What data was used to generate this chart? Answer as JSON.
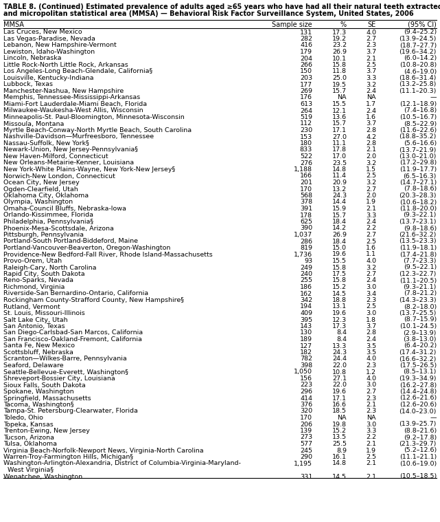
{
  "title_line1": "TABLE 8. (Continued) Estimated prevalence of adults aged ≥65 years who have had all their natural teeth extracted, by metropolitan",
  "title_line2": "and micropolitan statistical area (MMSA) — Behavioral Risk Factor Surveillance System, United States, 2006",
  "headers": [
    "MMSA",
    "Sample size",
    "%",
    "SE",
    "(95% CI)"
  ],
  "rows": [
    [
      "Las Cruces, New Mexico",
      "131",
      "17.3",
      "4.0",
      "(9.4–25.2)"
    ],
    [
      "Las Vegas-Paradise, Nevada",
      "282",
      "19.2",
      "2.7",
      "(13.9–24.5)"
    ],
    [
      "Lebanon, New Hampshire-Vermont",
      "416",
      "23.2",
      "2.3",
      "(18.7–27.7)"
    ],
    [
      "Lewiston, Idaho-Washington",
      "179",
      "26.9",
      "3.7",
      "(19.6–34.2)"
    ],
    [
      "Lincoln, Nebraska",
      "204",
      "10.1",
      "2.1",
      "(6.0–14.2)"
    ],
    [
      "Little Rock-North Little Rock, Arkansas",
      "266",
      "15.8",
      "2.5",
      "(10.8–20.8)"
    ],
    [
      "Los Angeles-Long Beach-Glendale, California§",
      "150",
      "11.8",
      "3.7",
      "(4.6–19.0)"
    ],
    [
      "Louisville, Kentucky-Indiana",
      "203",
      "25.0",
      "3.3",
      "(18.6–31.4)"
    ],
    [
      "Lubbock, Texas",
      "177",
      "19.5",
      "3.2",
      "(13.2–25.8)"
    ],
    [
      "Manchester-Nashua, New Hampshire",
      "269",
      "15.7",
      "2.4",
      "(11.1–20.3)"
    ],
    [
      "Memphis, Tennessee-Mississippi-Arkansas",
      "176",
      "NA",
      "NA",
      "—"
    ],
    [
      "Miami-Fort Lauderdale-Miami Beach, Florida",
      "613",
      "15.5",
      "1.7",
      "(12.1–18.9)"
    ],
    [
      "Milwaukee-Waukesha-West Allis, Wisconsin",
      "264",
      "12.1",
      "2.4",
      "(7.4–16.8)"
    ],
    [
      "Minneapolis-St. Paul-Bloomington, Minnesota-Wisconsin",
      "519",
      "13.6",
      "1.6",
      "(10.5–16.7)"
    ],
    [
      "Missoula, Montana",
      "112",
      "15.7",
      "3.7",
      "(8.5–22.9)"
    ],
    [
      "Myrtle Beach-Conway-North Myrtle Beach, South Carolina",
      "230",
      "17.1",
      "2.8",
      "(11.6–22.6)"
    ],
    [
      "Nashville-Davidson—Murfreesboro, Tennessee",
      "153",
      "27.0",
      "4.2",
      "(18.8–35.2)"
    ],
    [
      "Nassau-Suffolk, New York§",
      "180",
      "11.1",
      "2.8",
      "(5.6–16.6)"
    ],
    [
      "Newark-Union, New Jersey-Pennsylvania§",
      "833",
      "17.8",
      "2.1",
      "(13.7–21.9)"
    ],
    [
      "New Haven-Milford, Connecticut",
      "522",
      "17.0",
      "2.0",
      "(13.0–21.0)"
    ],
    [
      "New Orleans-Metairie-Kenner, Louisiana",
      "276",
      "23.5",
      "3.2",
      "(17.2–29.8)"
    ],
    [
      "New York-White Plains-Wayne, New York-New Jersey§",
      "1,188",
      "14.8",
      "1.5",
      "(11.9–17.7)"
    ],
    [
      "Norwich-New London, Connecticut",
      "166",
      "11.4",
      "2.5",
      "(6.5–16.3)"
    ],
    [
      "Ocean City, New Jersey",
      "201",
      "20.9",
      "3.2",
      "(14.7–27.1)"
    ],
    [
      "Ogden-Clearfield, Utah",
      "170",
      "13.2",
      "2.7",
      "(7.8–18.6)"
    ],
    [
      "Oklahoma City, Oklahoma",
      "568",
      "24.3",
      "2.0",
      "(20.3–28.3)"
    ],
    [
      "Olympia, Washington",
      "378",
      "14.4",
      "1.9",
      "(10.6–18.2)"
    ],
    [
      "Omaha-Council Bluffs, Nebraska-Iowa",
      "391",
      "15.9",
      "2.1",
      "(11.8–20.0)"
    ],
    [
      "Orlando-Kissimmee, Florida",
      "178",
      "15.7",
      "3.3",
      "(9.3–22.1)"
    ],
    [
      "Philadelphia, Pennsylvania§",
      "625",
      "18.4",
      "2.4",
      "(13.7–23.1)"
    ],
    [
      "Phoenix-Mesa-Scottsdale, Arizona",
      "390",
      "14.2",
      "2.2",
      "(9.8–18.6)"
    ],
    [
      "Pittsburgh, Pennsylvania",
      "1,037",
      "26.9",
      "2.7",
      "(21.6–32.2)"
    ],
    [
      "Portland-South Portland-Biddeford, Maine",
      "286",
      "18.4",
      "2.5",
      "(13.5–23.3)"
    ],
    [
      "Portland-Vancouver-Beaverton, Oregon-Washington",
      "819",
      "15.0",
      "1.6",
      "(11.9–18.1)"
    ],
    [
      "Providence-New Bedford-Fall River, Rhode Island-Massachusetts",
      "1,736",
      "19.6",
      "1.1",
      "(17.4–21.8)"
    ],
    [
      "Provo-Orem, Utah",
      "93",
      "15.5",
      "4.0",
      "(7.7–23.3)"
    ],
    [
      "Raleigh-Cary, North Carolina",
      "249",
      "15.8",
      "3.2",
      "(9.5–22.1)"
    ],
    [
      "Rapid City, South Dakota",
      "240",
      "17.5",
      "2.7",
      "(12.3–22.7)"
    ],
    [
      "Reno-Sparks, Nevada",
      "255",
      "15.8",
      "2.4",
      "(11.1–20.5)"
    ],
    [
      "Richmond, Virginia",
      "186",
      "15.2",
      "3.0",
      "(9.3–21.1)"
    ],
    [
      "Riverside-San Bernardino-Ontario, California",
      "162",
      "14.5",
      "3.4",
      "(7.8–21.2)"
    ],
    [
      "Rockingham County-Strafford County, New Hampshire§",
      "342",
      "18.8",
      "2.3",
      "(14.3–23.3)"
    ],
    [
      "Rutland, Vermont",
      "194",
      "13.1",
      "2.5",
      "(8.2–18.0)"
    ],
    [
      "St. Louis, Missouri-Illinois",
      "409",
      "19.6",
      "3.0",
      "(13.7–25.5)"
    ],
    [
      "Salt Lake City, Utah",
      "395",
      "12.3",
      "1.8",
      "(8.7–15.9)"
    ],
    [
      "San Antonio, Texas",
      "143",
      "17.3",
      "3.7",
      "(10.1–24.5)"
    ],
    [
      "San Diego-Carlsbad-San Marcos, California",
      "130",
      "8.4",
      "2.8",
      "(2.9–13.9)"
    ],
    [
      "San Francisco-Oakland-Fremont, California",
      "189",
      "8.4",
      "2.4",
      "(3.8–13.0)"
    ],
    [
      "Santa Fe, New Mexico",
      "127",
      "13.3",
      "3.5",
      "(6.4–20.2)"
    ],
    [
      "Scottsbluff, Nebraska",
      "182",
      "24.3",
      "3.5",
      "(17.4–31.2)"
    ],
    [
      "Scranton—Wilkes-Barre, Pennsylvania",
      "782",
      "24.4",
      "4.0",
      "(16.6–32.2)"
    ],
    [
      "Seaford, Delaware",
      "398",
      "22.0",
      "2.3",
      "(17.5–26.5)"
    ],
    [
      "Seattle-Bellevue-Everett, Washington§",
      "1,050",
      "10.8",
      "1.2",
      "(8.5–13.1)"
    ],
    [
      "Shreveport-Bossier City, Louisiana",
      "156",
      "27.1",
      "4.0",
      "(19.3–34.9)"
    ],
    [
      "Sioux Falls, South Dakota",
      "223",
      "22.0",
      "3.0",
      "(16.2–27.8)"
    ],
    [
      "Spokane, Washington",
      "296",
      "19.6",
      "2.7",
      "(14.4–24.8)"
    ],
    [
      "Springfield, Massachusetts",
      "414",
      "17.1",
      "2.3",
      "(12.6–21.6)"
    ],
    [
      "Tacoma, Washington§",
      "376",
      "16.6",
      "2.1",
      "(12.6–20.6)"
    ],
    [
      "Tampa-St. Petersburg-Clearwater, Florida",
      "320",
      "18.5",
      "2.3",
      "(14.0–23.0)"
    ],
    [
      "Toledo, Ohio",
      "170",
      "NA",
      "NA",
      "—"
    ],
    [
      "Topeka, Kansas",
      "206",
      "19.8",
      "3.0",
      "(13.9–25.7)"
    ],
    [
      "Trenton-Ewing, New Jersey",
      "139",
      "15.2",
      "3.3",
      "(8.8–21.6)"
    ],
    [
      "Tucson, Arizona",
      "273",
      "13.5",
      "2.2",
      "(9.2–17.8)"
    ],
    [
      "Tulsa, Oklahoma",
      "577",
      "25.5",
      "2.1",
      "(21.3–29.7)"
    ],
    [
      "Virginia Beach-Norfolk-Newport News, Virginia-North Carolina",
      "245",
      "8.9",
      "1.9",
      "(5.2–12.6)"
    ],
    [
      "Warren-Troy-Farmington Hills, Michigan§",
      "290",
      "16.1",
      "2.5",
      "(11.1–21.1)"
    ],
    [
      "Washington-Arlington-Alexandria, District of Columbia-Virginia-Maryland-",
      "1,195",
      "14.8",
      "2.1",
      "(10.6–19.0)"
    ],
    [
      "  West Virginia§",
      "",
      "",
      "",
      ""
    ],
    [
      "Wenatchee, Washington",
      "331",
      "14.5",
      "2.1",
      "(10.5–18.5)"
    ]
  ],
  "bg_color": "#ffffff",
  "line_color": "#000000",
  "title_fontsize": 7.0,
  "header_fontsize": 7.0,
  "row_fontsize": 6.8
}
